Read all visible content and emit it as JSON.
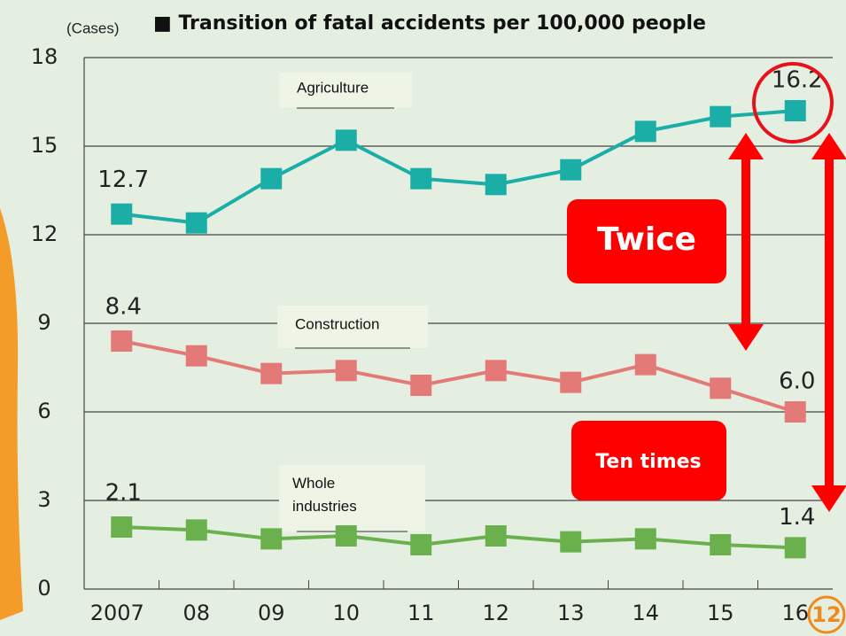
{
  "chart_data": {
    "type": "line",
    "title": "■ Transition of fatal accidents per 100,000 people",
    "unit_label": "(Cases)",
    "categories": [
      "2007",
      "08",
      "09",
      "10",
      "11",
      "12",
      "13",
      "14",
      "15",
      "16"
    ],
    "series": [
      {
        "name": "Agriculture",
        "color": "#1aaea6",
        "values": [
          12.7,
          12.4,
          13.9,
          15.2,
          13.9,
          13.7,
          14.2,
          15.5,
          16.0,
          16.2
        ],
        "value_labels": [
          "12.7",
          null,
          null,
          null,
          null,
          null,
          null,
          null,
          null,
          "16.2"
        ]
      },
      {
        "name": "Construction",
        "color": "#e47a78",
        "values": [
          8.4,
          7.9,
          7.3,
          7.4,
          6.9,
          7.4,
          7.0,
          7.6,
          6.8,
          6.0
        ],
        "value_labels": [
          "8.4",
          null,
          null,
          null,
          null,
          null,
          null,
          null,
          null,
          "6.0"
        ]
      },
      {
        "name": "Whole industries",
        "color": "#6ab04c",
        "values": [
          2.1,
          2.0,
          1.7,
          1.8,
          1.5,
          1.8,
          1.6,
          1.7,
          1.5,
          1.4
        ],
        "value_labels": [
          "2.1",
          null,
          null,
          null,
          null,
          null,
          null,
          null,
          null,
          "1.4"
        ]
      }
    ],
    "ylim": [
      0,
      18
    ],
    "yticks": [
      0,
      3,
      6,
      9,
      12,
      15,
      18
    ],
    "grid": true,
    "annotations": [
      "Twice",
      "Ten times"
    ],
    "page_number": "12"
  }
}
